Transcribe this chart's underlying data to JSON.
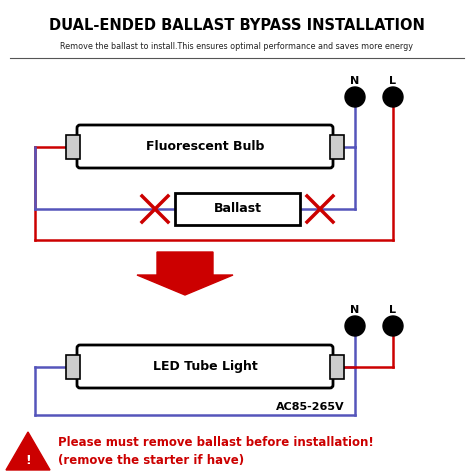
{
  "title": "DUAL-ENDED BALLAST BYPASS INSTALLATION",
  "subtitle": "Remove the ballast to install.This ensures optimal performance and saves more energy",
  "background_color": "#ffffff",
  "red_color": "#cc0000",
  "blue_color": "#5555bb",
  "black_color": "#000000",
  "box_fill": "#ffffff",
  "warning_text_line1": "Please must remove ballast before installation!",
  "warning_text_line2": "(remove the starter if have)",
  "voltage_label": "AC85-265V",
  "bulb_label": "Fluorescent Bulb",
  "ballast_label": "Ballast",
  "led_label": "LED Tube Light",
  "N_label": "N",
  "L_label": "L",
  "figsize": [
    4.74,
    4.74
  ],
  "dpi": 100
}
